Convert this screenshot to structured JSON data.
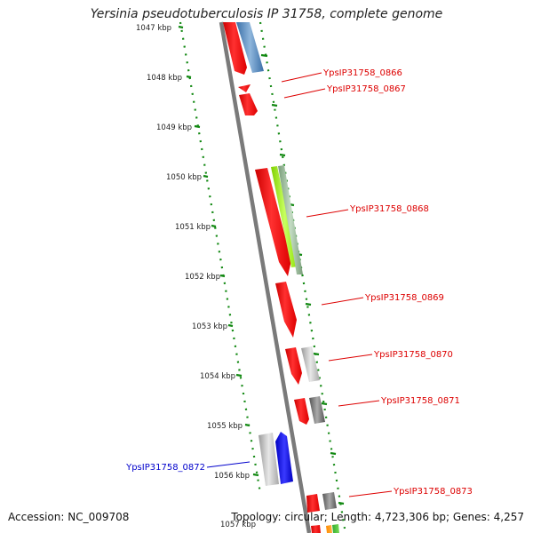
{
  "title": "Yersinia pseudotuberculosis IP 31758, complete genome",
  "footer": {
    "accession": "Accession: NC_009708",
    "topology": "Topology: circular; Length: 4,723,306 bp; Genes: 4,257"
  },
  "colors": {
    "forward": "#ff0000",
    "backbone": "#808080",
    "tick": "#118811",
    "label_red": "#dd0000",
    "label_blue": "#0000cc"
  },
  "kbp_ticks": [
    "1047 kbp",
    "1048 kbp",
    "1049 kbp",
    "1050 kbp",
    "1051 kbp",
    "1052 kbp",
    "1053 kbp",
    "1054 kbp",
    "1055 kbp",
    "1056 kbp",
    "1057 kbp"
  ],
  "gene_labels": [
    "YpsIP31758_0866",
    "YpsIP31758_0867",
    "YpsIP31758_0868",
    "YpsIP31758_0869",
    "YpsIP31758_0870",
    "YpsIP31758_0871",
    "YpsIP31758_0872",
    "YpsIP31758_0873"
  ]
}
